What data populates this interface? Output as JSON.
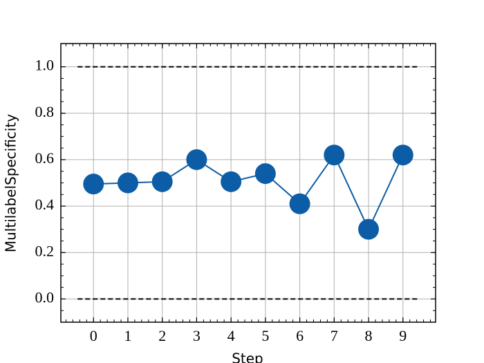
{
  "chart_data": {
    "type": "line",
    "x_label": "Step",
    "y_label": "MultilabelSpecificity",
    "x": [
      0,
      1,
      2,
      3,
      4,
      5,
      6,
      7,
      8,
      9
    ],
    "series": [
      {
        "name": "MultilabelSpecificity",
        "color": "#0C5DA5",
        "values": [
          0.495,
          0.5,
          0.505,
          0.6,
          0.505,
          0.54,
          0.41,
          0.62,
          0.3,
          0.62
        ]
      }
    ],
    "reference_lines": [
      0,
      1
    ],
    "xlim": [
      -0.95,
      9.95
    ],
    "xticks": [
      0,
      1,
      2,
      3,
      4,
      5,
      6,
      7,
      8,
      9
    ],
    "ylim": [
      -0.1,
      1.1
    ],
    "yticks": [
      {
        "value": 0,
        "label": "0.0"
      },
      {
        "value": 0.2,
        "label": "0.2"
      },
      {
        "value": 0.4,
        "label": "0.4"
      },
      {
        "value": 0.6,
        "label": "0.6"
      },
      {
        "value": 0.8,
        "label": "0.8"
      },
      {
        "value": 1,
        "label": "1.0"
      }
    ],
    "grid": true,
    "legend": false
  }
}
